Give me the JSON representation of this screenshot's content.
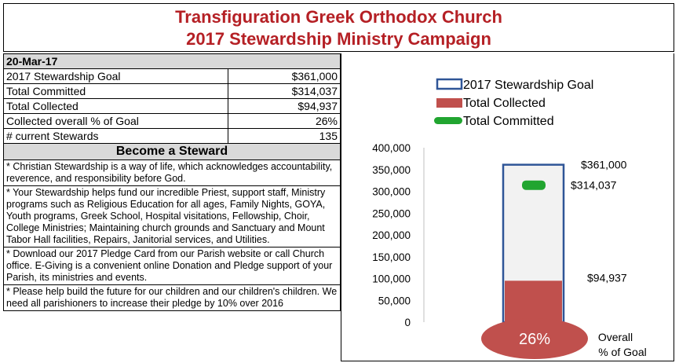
{
  "header": {
    "line1": "Transfiguration Greek Orthodox Church",
    "line2": "2017 Stewardship Ministry Campaign"
  },
  "summary": {
    "date": "20-Mar-17",
    "rows": [
      {
        "label": "2017 Stewardship Goal",
        "value": "$361,000"
      },
      {
        "label": "Total Committed",
        "value": "$314,037"
      },
      {
        "label": "Total Collected",
        "value": "$94,937"
      },
      {
        "label": "Collected overall % of Goal",
        "value": "26%"
      },
      {
        "label": "# current Stewards",
        "value": "135"
      }
    ]
  },
  "steward": {
    "heading": "Become a Steward",
    "paragraphs": [
      "* Christian Stewardship is a way of life, which acknowledges accountability, reverence, and responsibility before God.",
      "* Your Stewardship helps fund our incredible Priest, support staff, Ministry programs such as Religious Education for all ages, Family Nights, GOYA, Youth programs, Greek School, Hospital visitations, Fellowship, Choir, College Ministries; Maintaining church grounds and Sanctuary and Mount Tabor Hall facilities, Repairs, Janitorial services, and Utilities.",
      "* Download our 2017 Pledge Card from our Parish website or call Church office.  E-Giving is a convenient online Donation and Pledge support of your Parish, its ministries and events.",
      "* Please help build the future for our children and our children's children. We need all parishioners to increase their pledge by 10% over 2016"
    ]
  },
  "colors": {
    "title": "#b52025",
    "goal_outline": "#2f5597",
    "collected": "#c0504d",
    "committed": "#21a530",
    "tube_fill": "#f2f2f2",
    "percent_ellipse": "#c0504d"
  },
  "chart_data": {
    "type": "bar",
    "ylim": [
      0,
      400000
    ],
    "yticks": [
      "0",
      "50,000",
      "100,000",
      "150,000",
      "200,000",
      "250,000",
      "300,000",
      "350,000",
      "400,000"
    ],
    "series": [
      {
        "name": "2017 Stewardship Goal",
        "value": 361000,
        "label": "$361,000"
      },
      {
        "name": "Total Collected",
        "value": 94937,
        "label": "$94,937"
      },
      {
        "name": "Total Committed",
        "value": 314037,
        "label": "$314,037"
      }
    ],
    "legend_position": "top",
    "percent_of_goal": 26,
    "percent_label": "26%",
    "overall_label_line1": "Overall",
    "overall_label_line2": "% of Goal",
    "grid": false
  }
}
